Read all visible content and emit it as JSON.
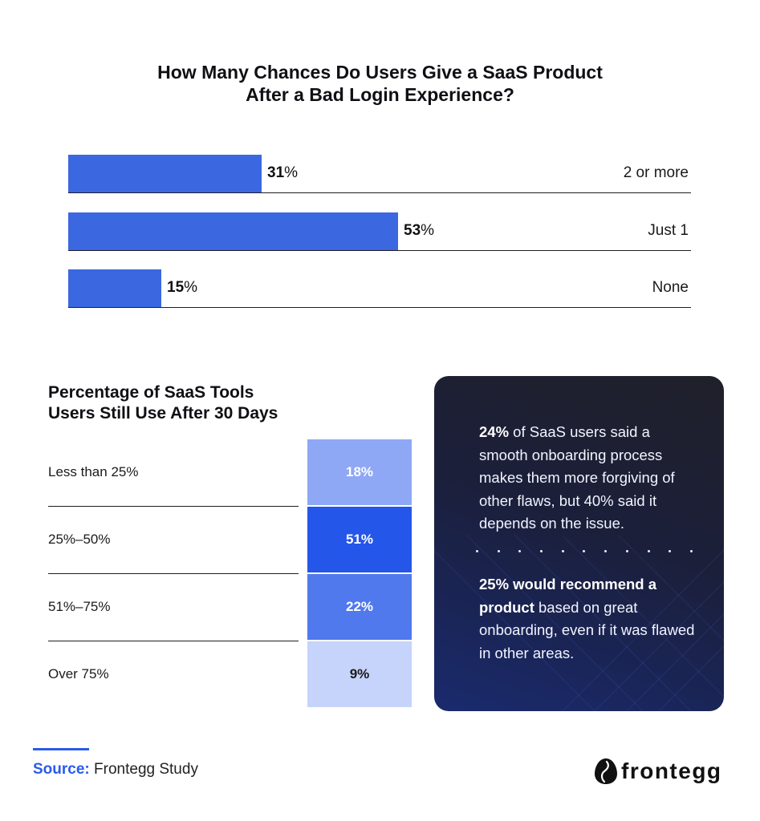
{
  "chart_data": [
    {
      "type": "bar",
      "title": "How Many Chances Do Users Give a SaaS Product After a Bad Login Experience?",
      "title_lines": [
        "How Many Chances Do Users Give a SaaS Product",
        "After a Bad Login Experience?"
      ],
      "categories": [
        "2 or more",
        "Just 1",
        "None"
      ],
      "values": [
        31,
        53,
        15
      ],
      "value_labels": [
        "31",
        "53",
        "15"
      ],
      "unit": "%",
      "color": "#3b67e0",
      "xlim": [
        0,
        100
      ],
      "orientation": "horizontal"
    },
    {
      "type": "table",
      "title": "Percentage of SaaS Tools Users Still Use After 30 Days",
      "title_lines": [
        "Percentage of SaaS Tools",
        "Users Still Use After 30 Days"
      ],
      "categories": [
        "Less than 25%",
        "25%–50%",
        "51%–75%",
        "Over 75%"
      ],
      "values": [
        18,
        51,
        22,
        9
      ],
      "value_labels": [
        "18%",
        "51%",
        "22%",
        "9%"
      ],
      "cell_colors": [
        "#8ea8f5",
        "#2556ea",
        "#4f79ec",
        "#c6d3fa"
      ],
      "text_colors": [
        "#ffffff",
        "#ffffff",
        "#ffffff",
        "#1a1a1a"
      ]
    }
  ],
  "card": {
    "p1_bold": "24%",
    "p1_rest": " of SaaS users said a smooth onboarding process makes them more forgiving of other flaws, but 40% said it depends on the issue.",
    "p2_bold": "25% would recommend a product",
    "p2_rest": " based on great onboarding, even if it was flawed in other areas."
  },
  "footer": {
    "source_label": "Source:",
    "source_text": " Frontegg Study",
    "logo_text": "frontegg"
  },
  "colors": {
    "accent": "#2a5bea",
    "card_bg_top": "#20202a",
    "card_bg_bottom": "#1a2a6e"
  },
  "icons": {
    "logo": "frontegg-egg-logo-icon"
  }
}
